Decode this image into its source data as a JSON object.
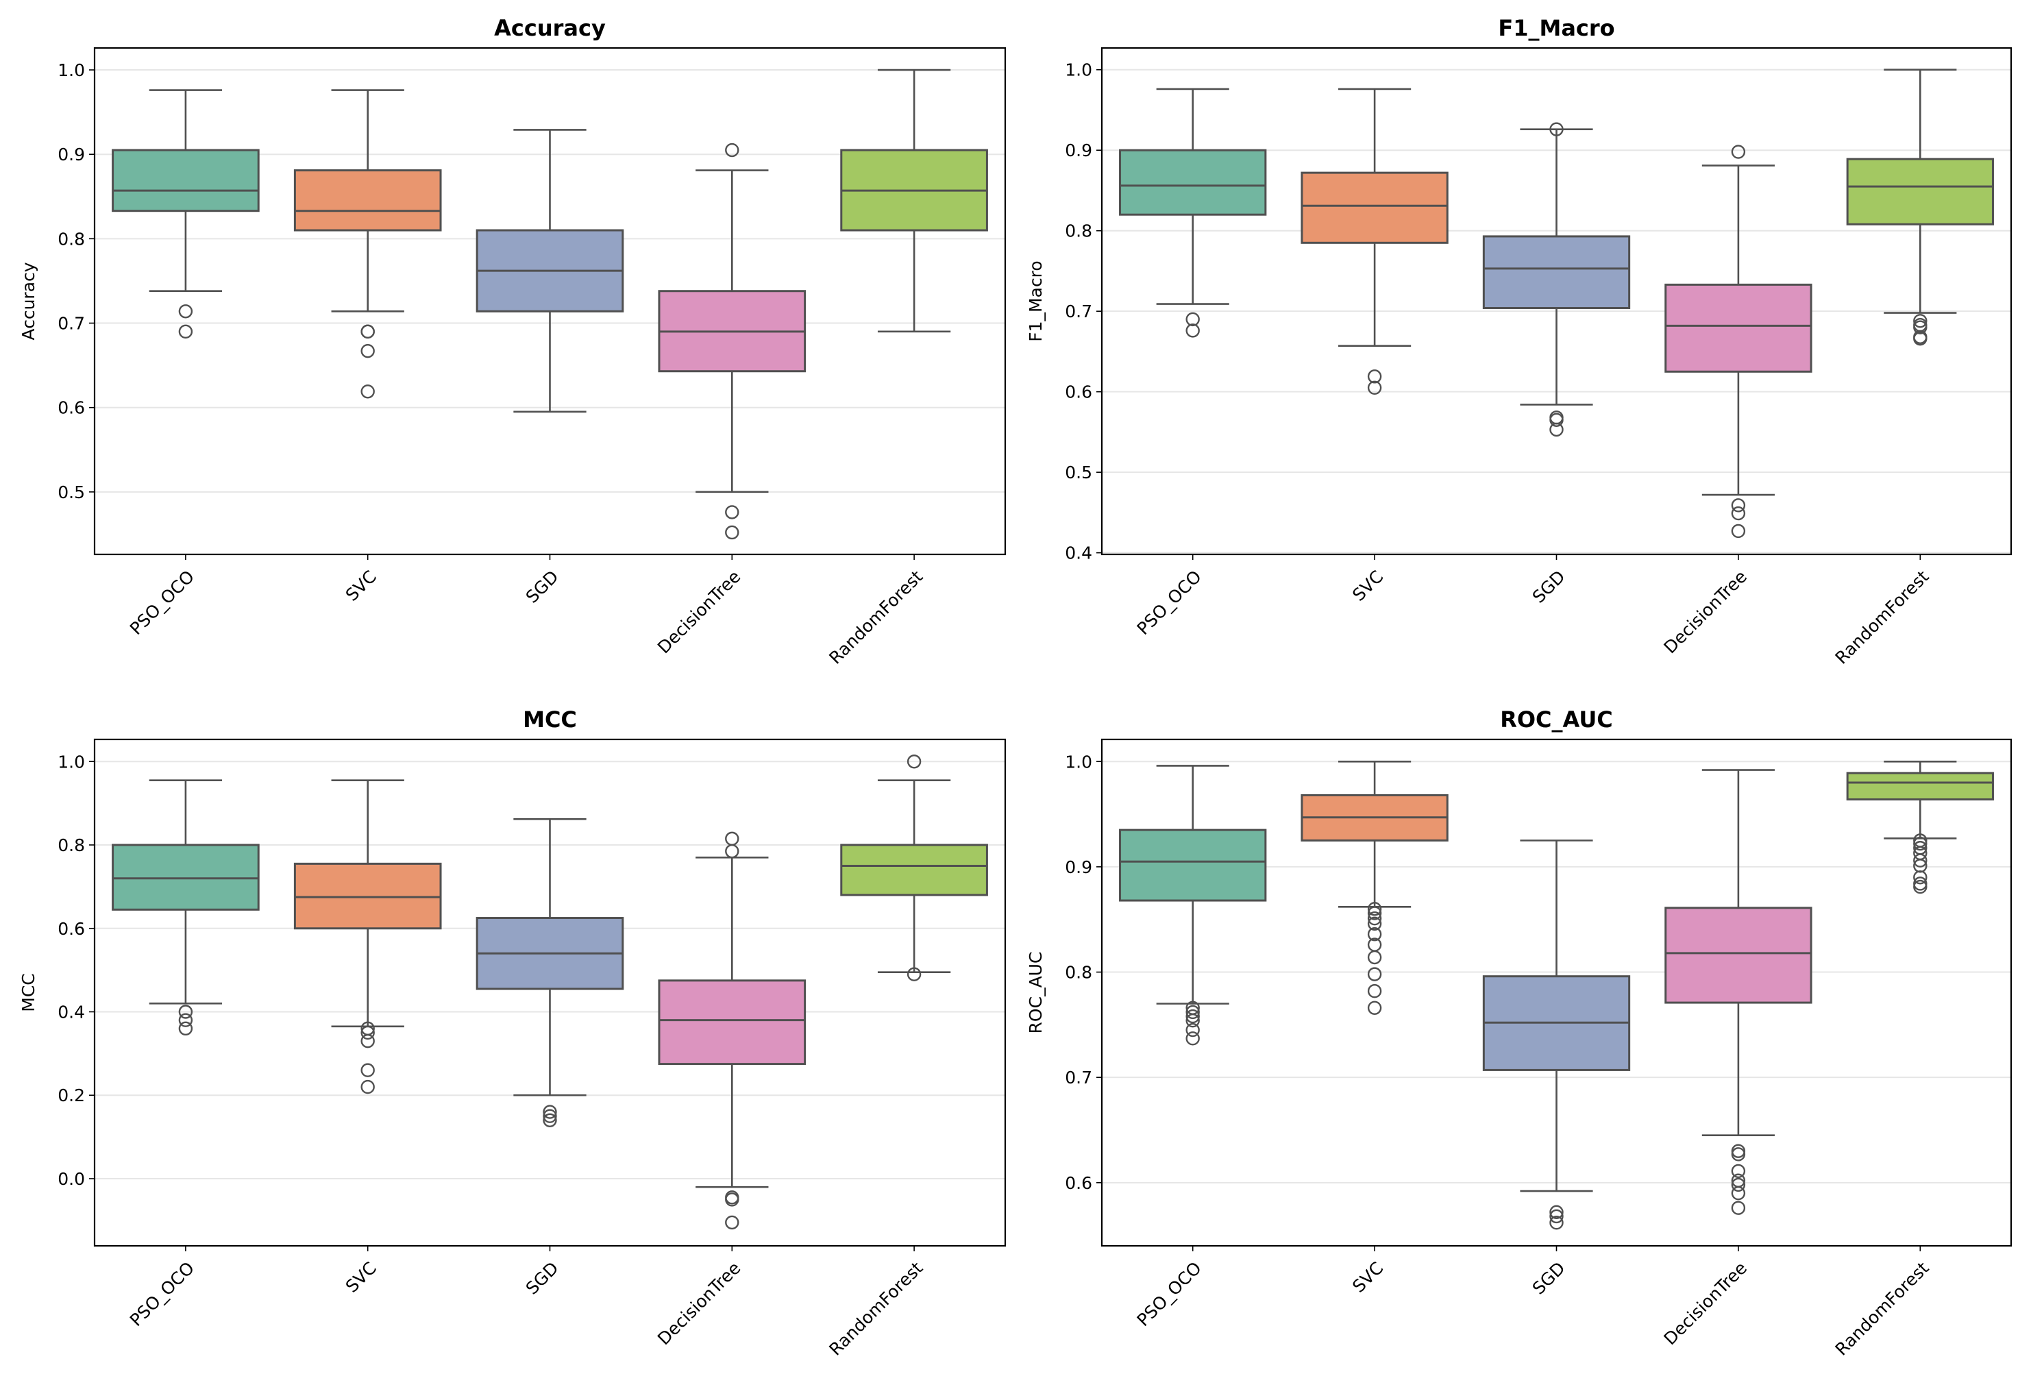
{
  "chart_data": [
    {
      "type": "box",
      "title": "Accuracy",
      "ylabel": "Accuracy",
      "xlabel": "",
      "ylim": [
        0.426,
        1.026
      ],
      "yticks": [
        0.5,
        0.6,
        0.7,
        0.8,
        0.9,
        1.0
      ],
      "grid": "horizontal",
      "categories": [
        "PSO_OCO",
        "SVC",
        "SGD",
        "DecisionTree",
        "RandomForest"
      ],
      "boxes": [
        {
          "whislo": 0.738,
          "q1": 0.833,
          "med": 0.857,
          "q3": 0.905,
          "whishi": 0.976,
          "fliers": [
            0.714,
            0.69
          ]
        },
        {
          "whislo": 0.714,
          "q1": 0.81,
          "med": 0.833,
          "q3": 0.881,
          "whishi": 0.976,
          "fliers": [
            0.69,
            0.69,
            0.667,
            0.619
          ]
        },
        {
          "whislo": 0.595,
          "q1": 0.714,
          "med": 0.762,
          "q3": 0.81,
          "whishi": 0.929,
          "fliers": []
        },
        {
          "whislo": 0.5,
          "q1": 0.643,
          "med": 0.69,
          "q3": 0.738,
          "whishi": 0.881,
          "fliers": [
            0.905,
            0.476,
            0.452
          ]
        },
        {
          "whislo": 0.69,
          "q1": 0.81,
          "med": 0.857,
          "q3": 0.905,
          "whishi": 1.0,
          "fliers": []
        }
      ]
    },
    {
      "type": "box",
      "title": "F1_Macro",
      "ylabel": "F1_Macro",
      "xlabel": "",
      "ylim": [
        0.398,
        1.027
      ],
      "yticks": [
        0.4,
        0.5,
        0.6,
        0.7,
        0.8,
        0.9,
        1.0
      ],
      "grid": "horizontal",
      "categories": [
        "PSO_OCO",
        "SVC",
        "SGD",
        "DecisionTree",
        "RandomForest"
      ],
      "boxes": [
        {
          "whislo": 0.709,
          "q1": 0.82,
          "med": 0.856,
          "q3": 0.9,
          "whishi": 0.976,
          "fliers": [
            0.69,
            0.676
          ]
        },
        {
          "whislo": 0.657,
          "q1": 0.785,
          "med": 0.831,
          "q3": 0.872,
          "whishi": 0.976,
          "fliers": [
            0.619,
            0.605
          ]
        },
        {
          "whislo": 0.584,
          "q1": 0.704,
          "med": 0.753,
          "q3": 0.793,
          "whishi": 0.926,
          "fliers": [
            0.926,
            0.568,
            0.565,
            0.553
          ]
        },
        {
          "whislo": 0.472,
          "q1": 0.625,
          "med": 0.682,
          "q3": 0.733,
          "whishi": 0.881,
          "fliers": [
            0.898,
            0.459,
            0.449,
            0.427
          ]
        },
        {
          "whislo": 0.698,
          "q1": 0.808,
          "med": 0.855,
          "q3": 0.889,
          "whishi": 1.0,
          "fliers": [
            0.688,
            0.683,
            0.68,
            0.668,
            0.666
          ]
        }
      ]
    },
    {
      "type": "box",
      "title": "MCC",
      "ylabel": "MCC",
      "xlabel": "",
      "ylim": [
        -0.161,
        1.053
      ],
      "yticks": [
        0.0,
        0.2,
        0.4,
        0.6,
        0.8,
        1.0
      ],
      "grid": "horizontal",
      "categories": [
        "PSO_OCO",
        "SVC",
        "SGD",
        "DecisionTree",
        "RandomForest"
      ],
      "boxes": [
        {
          "whislo": 0.42,
          "q1": 0.645,
          "med": 0.72,
          "q3": 0.8,
          "whishi": 0.955,
          "fliers": [
            0.4,
            0.38,
            0.36
          ]
        },
        {
          "whislo": 0.365,
          "q1": 0.6,
          "med": 0.675,
          "q3": 0.755,
          "whishi": 0.955,
          "fliers": [
            0.36,
            0.35,
            0.33,
            0.26,
            0.22
          ]
        },
        {
          "whislo": 0.2,
          "q1": 0.455,
          "med": 0.54,
          "q3": 0.625,
          "whishi": 0.862,
          "fliers": [
            0.16,
            0.15,
            0.14
          ]
        },
        {
          "whislo": -0.02,
          "q1": 0.275,
          "med": 0.38,
          "q3": 0.475,
          "whishi": 0.77,
          "fliers": [
            0.815,
            0.785,
            -0.045,
            -0.05,
            -0.105
          ]
        },
        {
          "whislo": 0.495,
          "q1": 0.68,
          "med": 0.75,
          "q3": 0.8,
          "whishi": 0.955,
          "fliers": [
            1.0,
            0.49
          ]
        }
      ]
    },
    {
      "type": "box",
      "title": "ROC_AUC",
      "ylabel": "ROC_AUC",
      "xlabel": "",
      "ylim": [
        0.54,
        1.021
      ],
      "yticks": [
        0.6,
        0.7,
        0.8,
        0.9,
        1.0
      ],
      "grid": "horizontal",
      "categories": [
        "PSO_OCO",
        "SVC",
        "SGD",
        "DecisionTree",
        "RandomForest"
      ],
      "boxes": [
        {
          "whislo": 0.77,
          "q1": 0.868,
          "med": 0.905,
          "q3": 0.935,
          "whishi": 0.996,
          "fliers": [
            0.766,
            0.762,
            0.758,
            0.754,
            0.745,
            0.737
          ]
        },
        {
          "whislo": 0.862,
          "q1": 0.925,
          "med": 0.947,
          "q3": 0.968,
          "whishi": 1.0,
          "fliers": [
            0.86,
            0.856,
            0.851,
            0.846,
            0.836,
            0.826,
            0.814,
            0.798,
            0.782,
            0.766
          ]
        },
        {
          "whislo": 0.592,
          "q1": 0.707,
          "med": 0.752,
          "q3": 0.796,
          "whishi": 0.925,
          "fliers": [
            0.572,
            0.568,
            0.562
          ]
        },
        {
          "whislo": 0.645,
          "q1": 0.771,
          "med": 0.818,
          "q3": 0.861,
          "whishi": 0.992,
          "fliers": [
            0.63,
            0.627,
            0.611,
            0.602,
            0.598,
            0.59,
            0.576
          ]
        },
        {
          "whislo": 0.927,
          "q1": 0.964,
          "med": 0.98,
          "q3": 0.989,
          "whishi": 1.0,
          "fliers": [
            0.925,
            0.922,
            0.918,
            0.913,
            0.906,
            0.901,
            0.89,
            0.884,
            0.881
          ]
        }
      ]
    }
  ],
  "colors": {
    "boxes": [
      "#72b6a0",
      "#e9966f",
      "#94a3c4",
      "#dc94bf",
      "#a3c862"
    ],
    "line": "#505050",
    "grid": "#e6e6e6"
  }
}
